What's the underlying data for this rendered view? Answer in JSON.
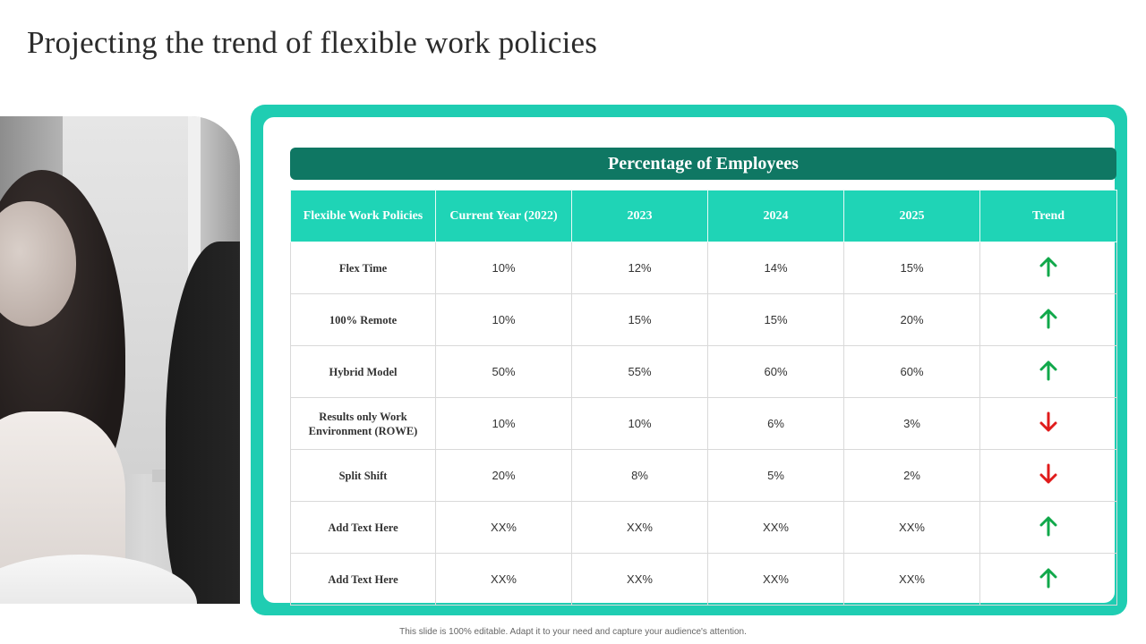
{
  "title": "Projecting the trend of flexible work policies",
  "banner": "Percentage of Employees",
  "columns": [
    "Flexible Work Policies",
    "Current Year (2022)",
    "2023",
    "2024",
    "2025",
    "Trend"
  ],
  "rows": [
    {
      "policy": "Flex Time",
      "c2022": "10%",
      "c2023": "12%",
      "c2024": "14%",
      "c2025": "15%",
      "trend": "up"
    },
    {
      "policy": "100% Remote",
      "c2022": "10%",
      "c2023": "15%",
      "c2024": "15%",
      "c2025": "20%",
      "trend": "up"
    },
    {
      "policy": "Hybrid  Model",
      "c2022": "50%",
      "c2023": "55%",
      "c2024": "60%",
      "c2025": "60%",
      "trend": "up"
    },
    {
      "policy": "Results only Work Environment  (ROWE)",
      "c2022": "10%",
      "c2023": "10%",
      "c2024": "6%",
      "c2025": "3%",
      "trend": "down"
    },
    {
      "policy": "Split Shift",
      "c2022": "20%",
      "c2023": "8%",
      "c2024": "5%",
      "c2025": "2%",
      "trend": "down"
    },
    {
      "policy": "Add  Text Here",
      "c2022": "XX%",
      "c2023": "XX%",
      "c2024": "XX%",
      "c2025": "XX%",
      "trend": "up"
    },
    {
      "policy": "Add  Text Here",
      "c2022": "XX%",
      "c2023": "XX%",
      "c2024": "XX%",
      "c2025": "XX%",
      "trend": "up"
    }
  ],
  "footer": "This slide is 100% editable. Adapt it to your need and capture your audience's attention.",
  "colors": {
    "frame": "#1fcdb2",
    "banner": "#0f7763",
    "header": "#1fd4b6",
    "up": "#10a84a",
    "down": "#e01b1b"
  },
  "icons": {
    "up": "arrow-up-icon",
    "down": "arrow-down-icon"
  }
}
